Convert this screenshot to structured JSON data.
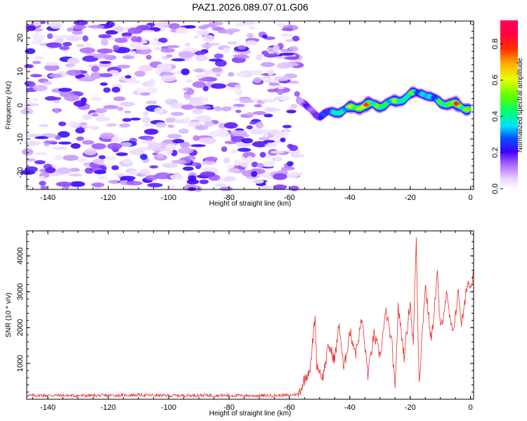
{
  "title": "PAZ1.2026.089.07.01.G06",
  "chart_data": [
    {
      "type": "heatmap",
      "title": "PAZ1.2026.089.07.01.G06",
      "xlabel": "Height of straight line (km)",
      "ylabel": "Frequency (Hz)",
      "xlim": [
        -147,
        1
      ],
      "ylim": [
        -25,
        25
      ],
      "xticks": [
        -140,
        -120,
        -100,
        -80,
        -60,
        -40,
        -20,
        0
      ],
      "yticks": [
        -20,
        -10,
        0,
        10,
        20
      ],
      "colorbar": {
        "label": "Normalized spectral amplitude",
        "range": [
          0,
          0.93
        ],
        "ticks": [
          0.0,
          0.2,
          0.4,
          0.6,
          0.8
        ]
      },
      "signal_track": {
        "description_points_km": [
          -57,
          -54,
          -50,
          -45,
          -40,
          -35,
          -30,
          -25,
          -20,
          -16,
          -13,
          -10,
          -5,
          0
        ],
        "frequency_hz": [
          2,
          -1,
          -3,
          -2,
          -1,
          0,
          0,
          1,
          3,
          4,
          2,
          1,
          0,
          -1
        ],
        "peak_amplitude": [
          0.15,
          0.2,
          0.25,
          0.45,
          0.6,
          0.9,
          0.55,
          0.6,
          0.55,
          0.4,
          0.45,
          0.5,
          0.85,
          0.6
        ]
      },
      "noise_region_km": [
        -147,
        -57
      ]
    },
    {
      "type": "line",
      "xlabel": "Height of straight line (km)",
      "ylabel": "SNR (10 * v/v)",
      "xlim": [
        -147,
        1
      ],
      "ylim": [
        0,
        4700
      ],
      "xticks": [
        -140,
        -120,
        -100,
        -80,
        -60,
        -40,
        -20,
        0
      ],
      "yticks": [
        1000,
        2000,
        3000,
        4000
      ],
      "series": [
        {
          "name": "SNR",
          "color": "#e8302c",
          "x": [
            -147,
            -140,
            -130,
            -120,
            -110,
            -100,
            -90,
            -80,
            -70,
            -60,
            -57,
            -55,
            -53,
            -51.5,
            -51,
            -49,
            -47,
            -45,
            -43.5,
            -42,
            -40,
            -38,
            -36,
            -34,
            -32,
            -30,
            -28,
            -26,
            -25,
            -24,
            -22,
            -20,
            -19,
            -18,
            -17.5,
            -17,
            -15,
            -13,
            -11,
            -10,
            -8,
            -6,
            -4,
            -3,
            -2,
            -1,
            0,
            1
          ],
          "y": [
            100,
            110,
            100,
            105,
            120,
            100,
            110,
            105,
            100,
            110,
            150,
            550,
            900,
            2350,
            1000,
            600,
            1500,
            1100,
            2100,
            800,
            1900,
            1300,
            2250,
            700,
            1800,
            1200,
            2450,
            1500,
            200,
            2600,
            1200,
            2750,
            1500,
            4500,
            2200,
            500,
            3200,
            1600,
            3500,
            1900,
            2900,
            1800,
            3000,
            2100,
            2600,
            3300,
            3100,
            3650
          ]
        }
      ]
    }
  ]
}
